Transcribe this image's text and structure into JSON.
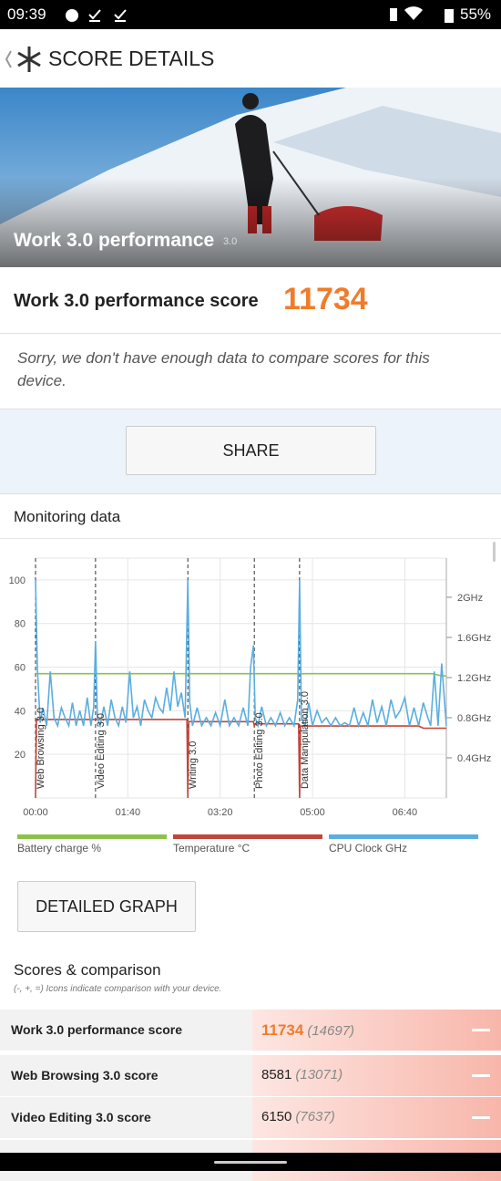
{
  "status_bar": {
    "time": "09:39",
    "battery": "55%"
  },
  "header": {
    "title": "SCORE DETAILS"
  },
  "hero": {
    "title": "Work 3.0 performance",
    "version": "3.0"
  },
  "score": {
    "label": "Work 3.0 performance score",
    "value": 11734
  },
  "notice": "Sorry, we don't have enough data to compare scores for this device.",
  "share_button": "SHARE",
  "monitoring_title": "Monitoring data",
  "chart_data": {
    "type": "line",
    "xlim": [
      0,
      445
    ],
    "xticks": [
      {
        "value": 0,
        "label": "00:00"
      },
      {
        "value": 100,
        "label": "01:40"
      },
      {
        "value": 200,
        "label": "03:20"
      },
      {
        "value": 300,
        "label": "05:00"
      },
      {
        "value": 400,
        "label": "06:40"
      }
    ],
    "ylim": [
      0,
      110
    ],
    "yticks": [
      20,
      40,
      60,
      80,
      100
    ],
    "y2lim": [
      0,
      2.39
    ],
    "y2ticks": [
      {
        "value": 0.4,
        "label": "0.4GHz"
      },
      {
        "value": 0.8,
        "label": "0.8GHz"
      },
      {
        "value": 1.2,
        "label": "1.2GHz"
      },
      {
        "value": 1.6,
        "label": "1.6GHz"
      },
      {
        "value": 2,
        "label": "2GHz"
      }
    ],
    "grid": true,
    "annotations": [
      {
        "x": 0,
        "text": "Web Browsing 3.0"
      },
      {
        "x": 65,
        "text": "Video Editing 3.0"
      },
      {
        "x": 165,
        "text": "Writing 3.0"
      },
      {
        "x": 237,
        "text": "Photo Editing 3.0"
      },
      {
        "x": 286,
        "text": "Data Manipulation 3.0"
      }
    ],
    "series": [
      {
        "name": "Battery charge %",
        "color": "#8bc34a",
        "x": [
          0,
          430,
          440,
          445
        ],
        "values": [
          57,
          57,
          56,
          56
        ]
      },
      {
        "name": "Temperature °C",
        "color": "#c0453a",
        "x": [
          0,
          1,
          164,
          165,
          166,
          236,
          237,
          238,
          285,
          286,
          287,
          415,
          420,
          445
        ],
        "values": [
          0,
          36,
          36,
          0,
          35,
          35,
          33,
          34,
          34,
          0,
          33,
          33,
          32,
          32
        ]
      },
      {
        "name": "CPU Clock GHz",
        "color": "#5aaee0",
        "axis": "y2",
        "x": [
          0,
          2,
          5,
          8,
          12,
          16,
          20,
          24,
          28,
          32,
          36,
          40,
          44,
          48,
          52,
          56,
          60,
          63,
          65,
          67,
          70,
          74,
          78,
          82,
          86,
          90,
          94,
          98,
          102,
          106,
          110,
          114,
          118,
          122,
          126,
          130,
          134,
          138,
          142,
          146,
          150,
          154,
          158,
          162,
          165,
          167,
          170,
          175,
          180,
          185,
          190,
          195,
          200,
          205,
          210,
          215,
          220,
          225,
          230,
          233,
          236,
          238,
          241,
          245,
          250,
          255,
          260,
          265,
          270,
          275,
          280,
          284,
          286,
          288,
          292,
          296,
          300,
          305,
          310,
          315,
          320,
          325,
          330,
          335,
          340,
          345,
          350,
          355,
          360,
          365,
          370,
          375,
          380,
          385,
          390,
          395,
          400,
          405,
          410,
          415,
          420,
          425,
          428,
          432,
          436,
          440,
          445
        ],
        "values": [
          2.17,
          1.3,
          0.75,
          0.9,
          0.72,
          1.26,
          0.8,
          0.72,
          0.9,
          0.8,
          0.72,
          0.95,
          0.72,
          0.87,
          0.72,
          1.0,
          0.72,
          0.9,
          1.56,
          0.8,
          0.72,
          0.91,
          0.72,
          0.98,
          0.8,
          0.72,
          0.91,
          0.75,
          1.26,
          0.8,
          0.91,
          0.72,
          0.98,
          0.87,
          0.8,
          1.0,
          0.9,
          0.85,
          1.1,
          0.87,
          1.26,
          0.91,
          1.05,
          0.8,
          2.17,
          0.95,
          0.72,
          0.9,
          0.72,
          0.8,
          0.72,
          0.85,
          0.72,
          0.98,
          0.72,
          0.8,
          0.72,
          0.9,
          0.72,
          1.3,
          1.52,
          0.8,
          0.72,
          0.91,
          0.72,
          0.8,
          0.72,
          0.85,
          0.72,
          0.8,
          0.72,
          0.98,
          2.17,
          0.8,
          0.72,
          0.95,
          0.72,
          0.87,
          0.75,
          0.8,
          0.72,
          0.8,
          0.72,
          0.75,
          0.72,
          0.9,
          0.72,
          0.85,
          0.72,
          0.98,
          0.75,
          0.91,
          0.72,
          0.98,
          0.8,
          0.87,
          1.0,
          0.72,
          0.9,
          0.72,
          0.95,
          0.8,
          0.72,
          1.26,
          0.72,
          1.34,
          0.72
        ]
      }
    ]
  },
  "detailed_graph_button": "DETAILED GRAPH",
  "scores": {
    "title": "Scores & comparison",
    "note": "(-, +, =) Icons indicate comparison with your device.",
    "rows": [
      {
        "name": "Work 3.0 performance score",
        "score": 11734,
        "comparison": "(14697)"
      },
      {
        "name": "Web Browsing 3.0 score",
        "score": 8581,
        "comparison": "(13071)"
      },
      {
        "name": "Video Editing 3.0 score",
        "score": 6150,
        "comparison": "(7637)"
      }
    ]
  }
}
